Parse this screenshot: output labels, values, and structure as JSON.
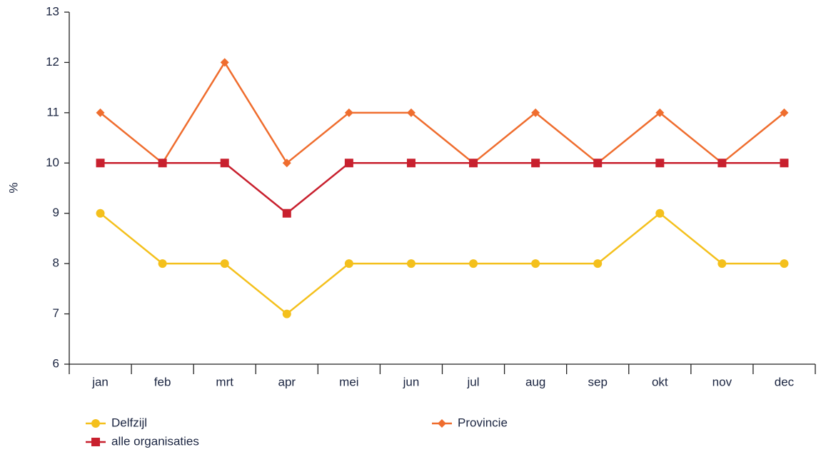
{
  "chart_data": {
    "type": "line",
    "y_label": "%",
    "categories": [
      "jan",
      "feb",
      "mrt",
      "apr",
      "mei",
      "jun",
      "jul",
      "aug",
      "sep",
      "okt",
      "nov",
      "dec"
    ],
    "series": [
      {
        "name": "Delfzijl",
        "color": "#f4c01c",
        "marker": "circle",
        "values": [
          9,
          8,
          8,
          7,
          8,
          8,
          8,
          8,
          8,
          9,
          8,
          8
        ]
      },
      {
        "name": "Provincie",
        "color": "#ef6d2e",
        "marker": "diamond",
        "values": [
          11,
          10,
          12,
          10,
          11,
          11,
          10,
          11,
          10,
          11,
          10,
          11
        ]
      },
      {
        "name": "alle organisaties",
        "color": "#c8202e",
        "marker": "square",
        "values": [
          10,
          10,
          10,
          9,
          10,
          10,
          10,
          10,
          10,
          10,
          10,
          10
        ]
      }
    ],
    "ylim": [
      6,
      13
    ],
    "yticks": [
      6,
      7,
      8,
      9,
      10,
      11,
      12,
      13
    ],
    "grid": false
  }
}
